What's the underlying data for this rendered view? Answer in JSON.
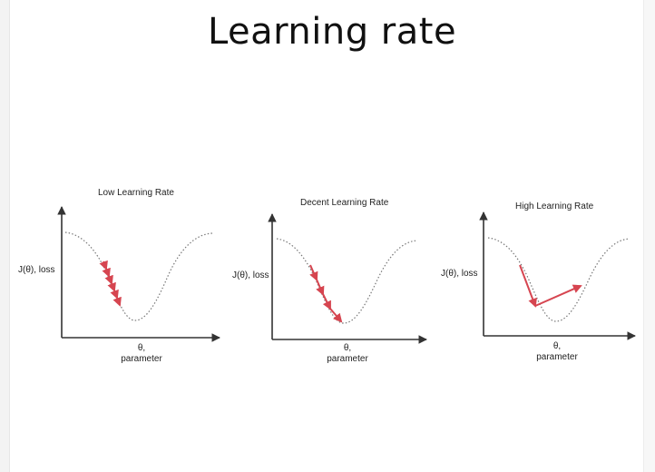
{
  "slide": {
    "title": "Learning rate"
  },
  "panels": [
    {
      "title": "Low Learning Rate",
      "ylabel": "J(θ), loss",
      "xlabel_line1": "θ,",
      "xlabel_line2": "parameter",
      "step_behavior": "many small steps down the curve"
    },
    {
      "title": "Decent Learning Rate",
      "ylabel": "J(θ), loss",
      "xlabel_line1": "θ,",
      "xlabel_line2": "parameter",
      "step_behavior": "few steps reaching the minimum"
    },
    {
      "title": "High Learning Rate",
      "ylabel": "J(θ), loss",
      "xlabel_line1": "θ,",
      "xlabel_line2": "parameter",
      "step_behavior": "large steps overshooting the minimum"
    }
  ],
  "colors": {
    "step_arrow": "#d64550",
    "curve": "#777777",
    "axis": "#333333"
  }
}
